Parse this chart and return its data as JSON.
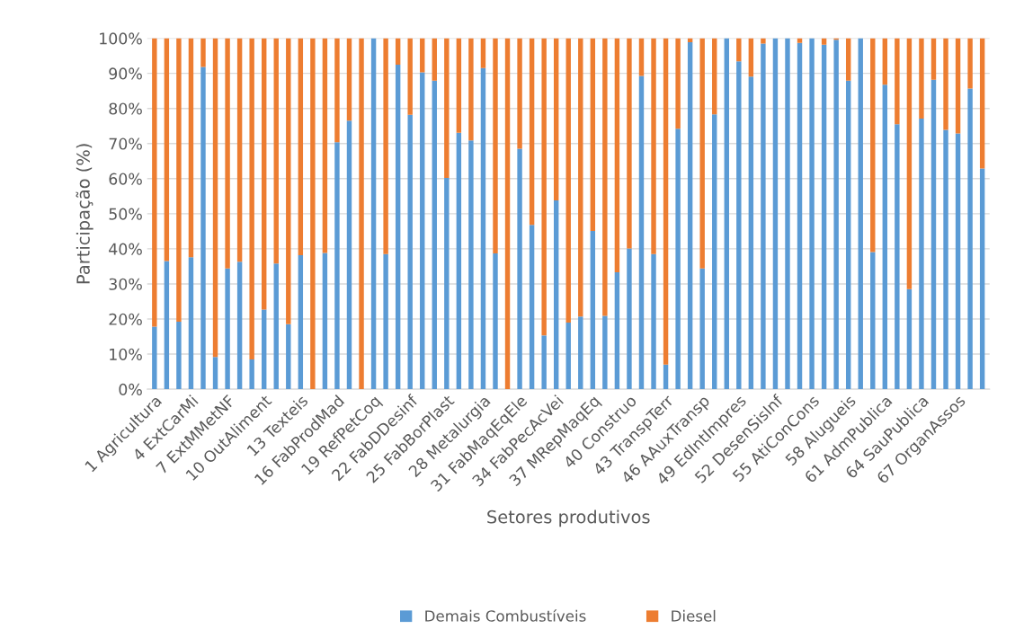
{
  "chart_data": {
    "type": "bar",
    "stacked": true,
    "xlabel": "Setores produtivos",
    "ylabel": "Participação (%)",
    "categories": [
      "1 Agricultura",
      null,
      null,
      "4 ExtCarMi",
      null,
      null,
      "7 ExtMMetNF",
      null,
      null,
      "10 OutAliment",
      null,
      null,
      "13 Texteis",
      null,
      null,
      "16 FabProdMad",
      null,
      null,
      "19 RefPetCoq",
      null,
      null,
      "22 FabDDesinf",
      null,
      null,
      "25 FabBorPlast",
      null,
      null,
      "28 Metalurgia",
      null,
      null,
      "31 FabMaqEqEle",
      null,
      null,
      "34 FabPecAcVei",
      null,
      null,
      "37 MRepMaqEq",
      null,
      null,
      "40 Construo",
      null,
      null,
      "43 TranspTerr",
      null,
      null,
      "46 AAuxTransp",
      null,
      null,
      "49 EdIntImpres",
      null,
      null,
      "52 DesenSisInf",
      null,
      null,
      "55 AtiConCons",
      null,
      null,
      "58 Alugueis",
      null,
      null,
      "61 AdmPublica",
      null,
      null,
      "64 SauPublica",
      null,
      null,
      "67 OrganAssos",
      null,
      null
    ],
    "series": [
      {
        "name": "Demais Combustíveis",
        "color": "#5b9bd5",
        "values": [
          17.8,
          36.5,
          19.2,
          37.6,
          91.8,
          9.2,
          34.4,
          36.3,
          8.5,
          22.7,
          35.8,
          18.5,
          38.2,
          0,
          38.8,
          70.4,
          76.5,
          0,
          100,
          38.5,
          92.5,
          78.2,
          90.3,
          87.9,
          60.2,
          73.1,
          70.9,
          91.5,
          38.7,
          0,
          68.5,
          46.8,
          15.3,
          53.8,
          19.0,
          20.7,
          45.1,
          20.9,
          33.3,
          40.1,
          89.3,
          38.5,
          7.0,
          74.2,
          98.9,
          34.4,
          78.3,
          100,
          93.4,
          89.1,
          98.5,
          100,
          100,
          98.7,
          100,
          98.2,
          99.6,
          87.9,
          100,
          39.1,
          86.8,
          75.5,
          28.5,
          77.1,
          88.2,
          73.9,
          72.9,
          85.7,
          62.9
        ]
      },
      {
        "name": "Diesel",
        "color": "#ed7d31",
        "values": [
          82.2,
          63.5,
          80.8,
          62.4,
          8.2,
          90.8,
          65.6,
          63.7,
          91.5,
          77.3,
          64.2,
          81.5,
          61.8,
          100,
          61.2,
          29.6,
          23.5,
          100,
          0,
          61.5,
          7.5,
          21.8,
          9.7,
          12.1,
          39.8,
          26.9,
          29.1,
          8.5,
          61.3,
          100,
          31.5,
          53.2,
          84.7,
          46.2,
          81.0,
          79.3,
          54.9,
          79.1,
          66.7,
          59.9,
          10.7,
          61.5,
          93.0,
          25.8,
          1.1,
          65.6,
          21.7,
          0,
          6.6,
          10.9,
          1.5,
          0,
          0,
          1.3,
          0,
          1.8,
          0.4,
          12.1,
          0,
          60.9,
          13.2,
          24.5,
          71.5,
          22.9,
          11.8,
          26.1,
          27.1,
          14.3,
          37.1
        ]
      }
    ],
    "ylim": [
      0,
      100
    ],
    "yticks": [
      {
        "value": 0,
        "label": "0%"
      },
      {
        "value": 10,
        "label": "10%"
      },
      {
        "value": 20,
        "label": "20%"
      },
      {
        "value": 30,
        "label": "30%"
      },
      {
        "value": 40,
        "label": "40%"
      },
      {
        "value": 50,
        "label": "50%"
      },
      {
        "value": 60,
        "label": "60%"
      },
      {
        "value": 70,
        "label": "70%"
      },
      {
        "value": 80,
        "label": "80%"
      },
      {
        "value": 90,
        "label": "90%"
      },
      {
        "value": 100,
        "label": "100%"
      }
    ],
    "grid": "y",
    "legend": "bottom"
  }
}
